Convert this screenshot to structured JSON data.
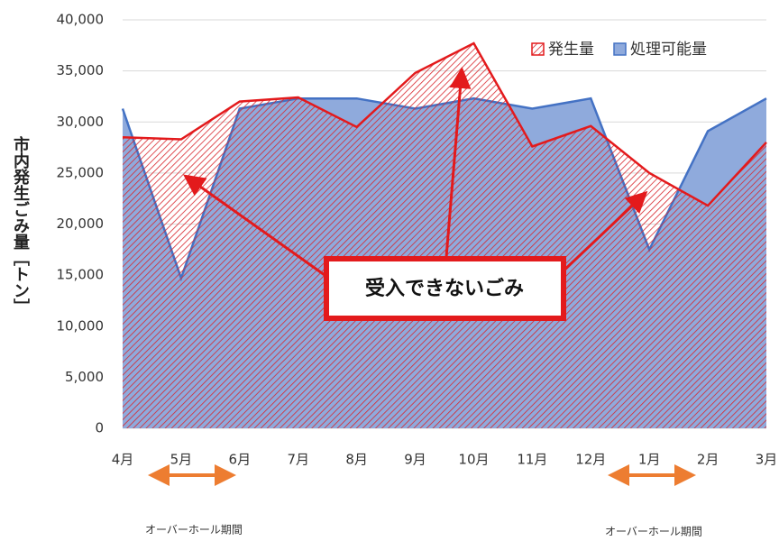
{
  "chart_data": {
    "type": "area",
    "y_label": "市内発生ごみ量［トン］",
    "categories": [
      "4月",
      "5月",
      "6月",
      "7月",
      "8月",
      "9月",
      "10月",
      "11月",
      "12月",
      "1月",
      "2月",
      "3月"
    ],
    "series": [
      {
        "name": "発生量",
        "color": "#e31a1c",
        "values": [
          28500,
          28300,
          32000,
          32400,
          29500,
          34800,
          37700,
          27600,
          29600,
          25000,
          21800,
          28000
        ]
      },
      {
        "name": "処理可能量",
        "color": "#4472c4",
        "values": [
          31300,
          14700,
          31300,
          32300,
          32300,
          31300,
          32300,
          31300,
          32300,
          17500,
          29100,
          32300
        ]
      }
    ],
    "ylim": [
      0,
      40000
    ],
    "yticks": [
      0,
      {
        "value": 5000,
        "label": "5,000"
      },
      {
        "value": 10000,
        "label": "10,000"
      },
      {
        "value": 15000,
        "label": "15,000"
      },
      {
        "value": 20000,
        "label": "20,000"
      },
      {
        "value": 25000,
        "label": "25,000"
      },
      {
        "value": 30000,
        "label": "30,000"
      },
      {
        "value": 35000,
        "label": "35,000"
      },
      {
        "value": 40000,
        "label": "40,000"
      }
    ],
    "grid": true,
    "legend": "upper right",
    "annotations": [
      "受入できないごみ",
      "オーバーホール期間",
      "オーバーホール期間"
    ]
  }
}
